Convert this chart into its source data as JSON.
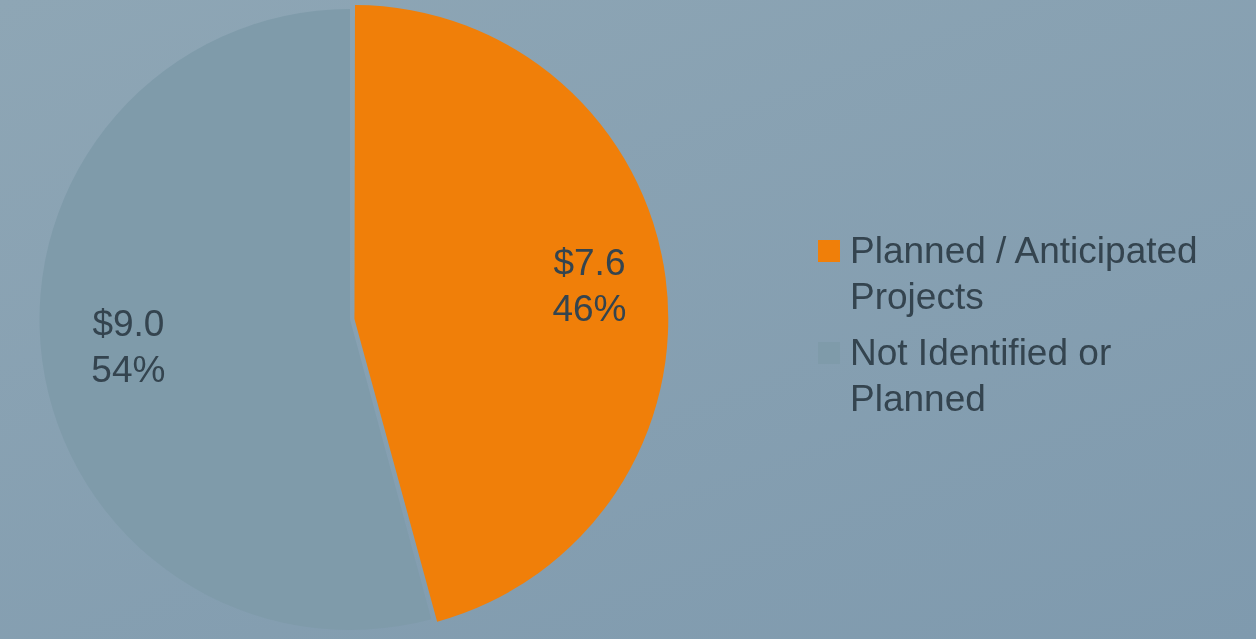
{
  "chart_data": {
    "type": "pie",
    "categories": [
      "Planned / Anticipated Projects",
      "Not Identified or Planned"
    ],
    "values": [
      7.6,
      9.0
    ],
    "colors": [
      "#f07f09",
      "#7f9baa"
    ],
    "value_labels": [
      "$7.6\n46%",
      "$9.0\n54%"
    ],
    "legend": "right"
  }
}
